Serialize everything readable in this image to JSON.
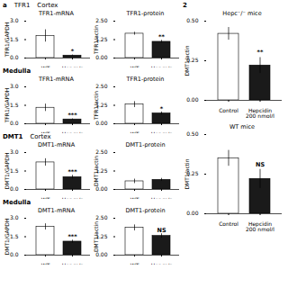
{
  "chart_data": [
    {
      "type": "bar",
      "title": "TFR1-mRNA",
      "categories": [
        "WT",
        "Hepc⁻/⁻"
      ],
      "values": [
        1.8,
        0.2
      ],
      "errors": [
        0.5,
        0.05
      ],
      "colors": [
        "#ffffff",
        "#1a1a1a"
      ],
      "y_label": "TFR1/GAPDH",
      "ylim": [
        0,
        3
      ],
      "yticks": [
        {
          "value": 0,
          "label": "0.0"
        },
        1.5,
        {
          "value": 3,
          "label": "3.0"
        }
      ],
      "annotations": [
        {
          "text": "a"
        },
        {
          "text": "TFR1"
        },
        {
          "text": "Cortex"
        },
        {
          "category": "Hepc⁻/⁻",
          "text": "*"
        }
      ]
    },
    {
      "type": "bar",
      "title": "TFR1-protein",
      "categories": [
        "WT",
        "Hepc⁻/⁻"
      ],
      "values": [
        1.65,
        1.1
      ],
      "errors": [
        0.1,
        0.1
      ],
      "colors": [
        "#ffffff",
        "#1a1a1a"
      ],
      "y_label": "TFR1/actin",
      "ylim": [
        0,
        2.5
      ],
      "yticks": [
        {
          "value": 0,
          "label": "0.00"
        },
        1.25,
        {
          "value": 2.5,
          "label": "2.50"
        }
      ],
      "annotations": [
        {
          "category": "Hepc⁻/⁻",
          "text": "**"
        }
      ]
    },
    {
      "type": "bar",
      "title": "TFR1-mRNA",
      "categories": [
        "WT",
        "Hepc⁻/⁻"
      ],
      "values": [
        1.3,
        0.35
      ],
      "errors": [
        0.3,
        0.05
      ],
      "colors": [
        "#ffffff",
        "#1a1a1a"
      ],
      "y_label": "TFR1/GAPDH",
      "ylim": [
        0,
        3
      ],
      "yticks": [
        {
          "value": 0,
          "label": "0.0"
        },
        1.5,
        {
          "value": 3,
          "label": "3.0"
        }
      ],
      "annotations": [
        {
          "text": "Medulla"
        },
        {
          "category": "Hepc⁻/⁻",
          "text": "***"
        }
      ]
    },
    {
      "type": "bar",
      "title": "TFR1-protein",
      "categories": [
        "WT",
        "Hepc⁻/⁻"
      ],
      "values": [
        1.3,
        0.7
      ],
      "errors": [
        0.2,
        0.1
      ],
      "colors": [
        "#ffffff",
        "#1a1a1a"
      ],
      "y_label": "TFR1/actin",
      "ylim": [
        0,
        2.5
      ],
      "yticks": [
        {
          "value": 0,
          "label": "0.00"
        },
        1.25,
        {
          "value": 2.5,
          "label": "2.50"
        }
      ],
      "annotations": [
        {
          "category": "Hepc⁻/⁻",
          "text": "*"
        }
      ]
    },
    {
      "type": "bar",
      "title": "DMT1-mRNA",
      "categories": [
        "WT",
        "Hepc⁻/⁻"
      ],
      "values": [
        2.2,
        1.0
      ],
      "errors": [
        0.3,
        0.15
      ],
      "colors": [
        "#ffffff",
        "#1a1a1a"
      ],
      "y_label": "DMT1/GAPDH",
      "ylim": [
        0,
        3
      ],
      "yticks": [
        {
          "value": 0,
          "label": "0.0"
        },
        1.5,
        {
          "value": 3,
          "label": "3.0"
        }
      ],
      "annotations": [
        {
          "text": "DMT1"
        },
        {
          "text": "Cortex"
        },
        {
          "category": "Hepc⁻/⁻",
          "text": "***"
        }
      ]
    },
    {
      "type": "bar",
      "title": "DMT1-protein",
      "categories": [
        "WT",
        "Hepc⁻/⁻"
      ],
      "values": [
        0.55,
        0.65
      ],
      "errors": [
        0.15,
        0.1
      ],
      "colors": [
        "#ffffff",
        "#1a1a1a"
      ],
      "y_label": "DMT1/actin",
      "ylim": [
        0,
        2.5
      ],
      "yticks": [
        {
          "value": 0,
          "label": "0.00"
        },
        1.25,
        {
          "value": 2.5,
          "label": "2.50"
        }
      ]
    },
    {
      "type": "bar",
      "title": "DMT1-mRNA",
      "categories": [
        "WT",
        "Hepc⁻/⁻"
      ],
      "values": [
        2.3,
        1.1
      ],
      "errors": [
        0.25,
        0.12
      ],
      "colors": [
        "#ffffff",
        "#1a1a1a"
      ],
      "y_label": "DMT1/GAPDH",
      "ylim": [
        0,
        3
      ],
      "yticks": [
        {
          "value": 0,
          "label": "0.0"
        },
        1.5,
        {
          "value": 3,
          "label": "3.0"
        }
      ],
      "annotations": [
        {
          "text": "Medulla"
        },
        {
          "category": "Hepc⁻/⁻",
          "text": "***"
        }
      ]
    },
    {
      "type": "bar",
      "title": "DMT1-protein",
      "categories": [
        "WT",
        "Hepc⁻/⁻"
      ],
      "values": [
        1.85,
        1.3
      ],
      "errors": [
        0.2,
        0.15
      ],
      "colors": [
        "#ffffff",
        "#1a1a1a"
      ],
      "y_label": "DMT1/actin",
      "ylim": [
        0,
        2.5
      ],
      "yticks": [
        {
          "value": 0,
          "label": "0.00"
        },
        1.25,
        {
          "value": 2.5,
          "label": "2.50"
        }
      ],
      "annotations": [
        {
          "category": "Hepc⁻/⁻",
          "text": "NS"
        }
      ]
    },
    {
      "type": "bar",
      "title": "Hepc⁻/⁻ mice",
      "categories": [
        "Control",
        "Hepcidin\n200 nmol/l"
      ],
      "values": [
        0.42,
        0.22
      ],
      "errors": [
        0.04,
        0.05
      ],
      "colors": [
        "#ffffff",
        "#1a1a1a"
      ],
      "y_label": "DMT1/actin",
      "ylim": [
        0,
        0.5
      ],
      "yticks": [
        {
          "value": 0,
          "label": "0.00"
        },
        0.25,
        {
          "value": 0.5,
          "label": "0.50"
        }
      ],
      "annotations": [
        {
          "text": "2"
        },
        {
          "category": "Hepcidin\n200 nmol/l",
          "text": "**"
        }
      ]
    },
    {
      "type": "bar",
      "title": "WT mice",
      "categories": [
        "Control",
        "Hepcidin\n200 nmol/l"
      ],
      "values": [
        0.35,
        0.22
      ],
      "errors": [
        0.05,
        0.06
      ],
      "colors": [
        "#ffffff",
        "#1a1a1a"
      ],
      "y_label": "DMT1/actin",
      "ylim": [
        0,
        0.5
      ],
      "yticks": [
        {
          "value": 0,
          "label": "0.00"
        },
        0.25,
        {
          "value": 0.5,
          "label": "0.50"
        }
      ],
      "annotations": [
        {
          "category": "Hepcidin\n200 nmol/l",
          "text": "NS"
        }
      ]
    }
  ]
}
